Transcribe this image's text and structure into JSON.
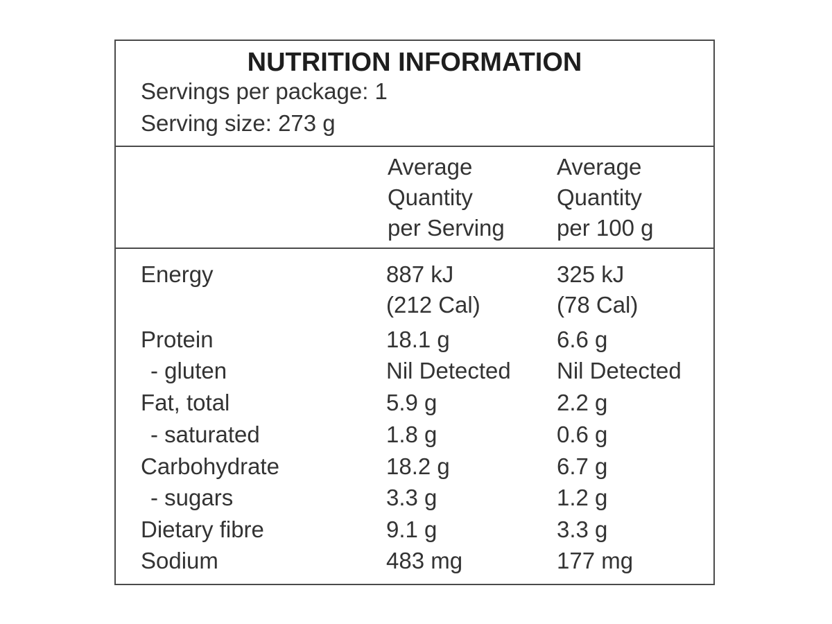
{
  "label": {
    "title": "NUTRITION INFORMATION",
    "servings_per_package": "Servings per package: 1",
    "serving_size": "Serving size:  273 g"
  },
  "columns": {
    "per_serving": [
      "Average",
      "Quantity",
      "per Serving"
    ],
    "per_100g": [
      "Average",
      "Quantity",
      "per 100 g"
    ]
  },
  "rows": [
    {
      "name": "Energy",
      "serving": "887 kJ",
      "serving_extra": "(212 Cal)",
      "per100": "325 kJ",
      "per100_extra": "(78 Cal)"
    },
    {
      "name": "Protein",
      "serving": "18.1 g",
      "per100": "6.6 g"
    },
    {
      "name": " - gluten",
      "serving": "Nil Detected",
      "per100": "Nil Detected"
    },
    {
      "name": "Fat, total",
      "serving": "5.9 g",
      "per100": "2.2 g"
    },
    {
      "name": " - saturated",
      "serving": "1.8 g",
      "per100": "0.6 g"
    },
    {
      "name": "Carbohydrate",
      "serving": "18.2 g",
      "per100": "6.7 g"
    },
    {
      "name": " - sugars",
      "serving": "3.3 g",
      "per100": "1.2 g"
    },
    {
      "name": "Dietary fibre",
      "serving": "9.1 g",
      "per100": "3.3 g"
    },
    {
      "name": "Sodium",
      "serving": "483 mg",
      "per100": "177 mg"
    }
  ]
}
